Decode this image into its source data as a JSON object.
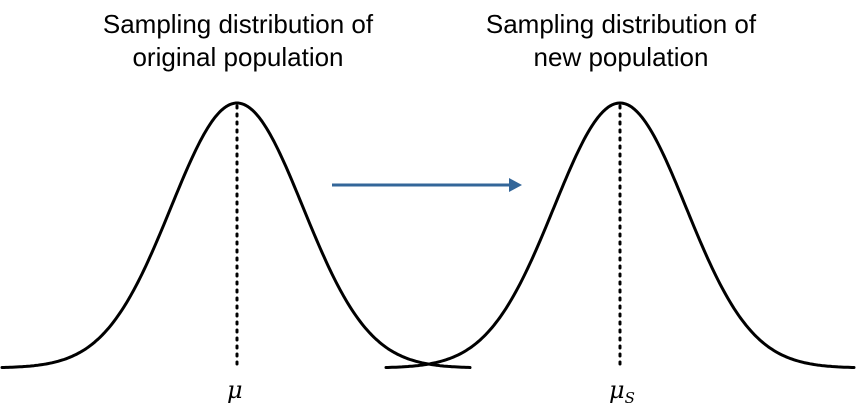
{
  "titles": {
    "left": {
      "line1": "Sampling distribution of",
      "line2": "original population"
    },
    "right": {
      "line1": "Sampling distribution of",
      "line2": "new population"
    }
  },
  "labels": {
    "mean_left": "μ",
    "mean_right_base": "μ",
    "mean_right_subscript": "S"
  },
  "colors": {
    "curve": "#000000",
    "arrow": "#336699"
  }
}
